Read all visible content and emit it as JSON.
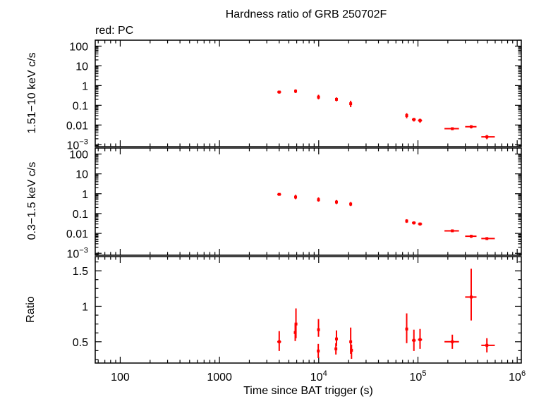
{
  "title": "Hardness ratio of GRB 250702F",
  "subtitle": "red: PC",
  "colors": {
    "series": "#ff0000",
    "axis": "#000000",
    "background": "#ffffff"
  },
  "chart_data": [
    {
      "panel": "hard",
      "type": "scatter",
      "ylabel": "1.51−10 keV c/s",
      "yscale": "log",
      "xscale": "log",
      "xlim": [
        56,
        1100000
      ],
      "ylim": [
        0.0008,
        200
      ],
      "ytick_labels": [
        {
          "v": 100,
          "label": "100"
        },
        {
          "v": 10,
          "label": "10"
        },
        {
          "v": 1,
          "label": "1"
        },
        {
          "v": 0.1,
          "label": "0.1"
        },
        {
          "v": 0.01,
          "label": "0.01"
        },
        {
          "v": 0.001,
          "label": "10",
          "exp": "−3"
        }
      ],
      "points": [
        {
          "x": 4000,
          "y": 0.47,
          "xerr": [
            180,
            180
          ],
          "yerr": [
            0.08,
            0.08
          ]
        },
        {
          "x": 5850,
          "y": 0.52,
          "xerr": [
            120,
            120
          ],
          "yerr": [
            0.1,
            0.12
          ]
        },
        {
          "x": 9950,
          "y": 0.26,
          "xerr": [
            200,
            200
          ],
          "yerr": [
            0.06,
            0.08
          ]
        },
        {
          "x": 15100,
          "y": 0.2,
          "xerr": [
            250,
            250
          ],
          "yerr": [
            0.04,
            0.05
          ]
        },
        {
          "x": 21000,
          "y": 0.12,
          "xerr": [
            350,
            350
          ],
          "yerr": [
            0.04,
            0.05
          ]
        },
        {
          "x": 77000,
          "y": 0.03,
          "xerr": [
            800,
            800
          ],
          "yerr": [
            0.008,
            0.01
          ]
        },
        {
          "x": 91000,
          "y": 0.019,
          "xerr": [
            4000,
            4000
          ],
          "yerr": [
            0.004,
            0.004
          ]
        },
        {
          "x": 105000,
          "y": 0.017,
          "xerr": [
            5000,
            5000
          ],
          "yerr": [
            0.004,
            0.004
          ]
        },
        {
          "x": 222000,
          "y": 0.0065,
          "xerr": [
            37000,
            37000
          ],
          "yerr": [
            0.001,
            0.001
          ]
        },
        {
          "x": 344000,
          "y": 0.0082,
          "xerr": [
            45000,
            45000
          ],
          "yerr": [
            0.0015,
            0.0015
          ]
        },
        {
          "x": 495000,
          "y": 0.0025,
          "xerr": [
            60000,
            100000
          ],
          "yerr": [
            0.0006,
            0.0006
          ]
        }
      ]
    },
    {
      "panel": "soft",
      "type": "scatter",
      "ylabel": "0.3−1.5 keV c/s",
      "yscale": "log",
      "xscale": "log",
      "xlim": [
        56,
        1100000
      ],
      "ylim": [
        0.0008,
        200
      ],
      "ytick_labels": [
        {
          "v": 100,
          "label": "100"
        },
        {
          "v": 10,
          "label": "10"
        },
        {
          "v": 1,
          "label": "1"
        },
        {
          "v": 0.1,
          "label": "0.1"
        },
        {
          "v": 0.01,
          "label": "0.01"
        },
        {
          "v": 0.001,
          "label": "10",
          "exp": "−3"
        }
      ],
      "points": [
        {
          "x": 4000,
          "y": 0.93,
          "xerr": [
            180,
            180
          ],
          "yerr": [
            0.12,
            0.12
          ]
        },
        {
          "x": 5850,
          "y": 0.68,
          "xerr": [
            120,
            120
          ],
          "yerr": [
            0.15,
            0.2
          ]
        },
        {
          "x": 9950,
          "y": 0.5,
          "xerr": [
            200,
            200
          ],
          "yerr": [
            0.1,
            0.15
          ]
        },
        {
          "x": 15100,
          "y": 0.38,
          "xerr": [
            250,
            250
          ],
          "yerr": [
            0.08,
            0.1
          ]
        },
        {
          "x": 21000,
          "y": 0.3,
          "xerr": [
            350,
            350
          ],
          "yerr": [
            0.06,
            0.08
          ]
        },
        {
          "x": 77000,
          "y": 0.042,
          "xerr": [
            800,
            800
          ],
          "yerr": [
            0.008,
            0.01
          ]
        },
        {
          "x": 91000,
          "y": 0.034,
          "xerr": [
            4000,
            4000
          ],
          "yerr": [
            0.006,
            0.006
          ]
        },
        {
          "x": 105000,
          "y": 0.03,
          "xerr": [
            5000,
            5000
          ],
          "yerr": [
            0.005,
            0.005
          ]
        },
        {
          "x": 222000,
          "y": 0.0135,
          "xerr": [
            37000,
            37000
          ],
          "yerr": [
            0.0015,
            0.0015
          ]
        },
        {
          "x": 344000,
          "y": 0.0072,
          "xerr": [
            45000,
            45000
          ],
          "yerr": [
            0.0012,
            0.0012
          ]
        },
        {
          "x": 495000,
          "y": 0.0055,
          "xerr": [
            60000,
            100000
          ],
          "yerr": [
            0.0008,
            0.0008
          ]
        }
      ]
    },
    {
      "panel": "ratio",
      "type": "scatter",
      "ylabel": "Ratio",
      "xlabel": "Time since BAT trigger (s)",
      "yscale": "linear",
      "xscale": "log",
      "xlim": [
        56,
        1100000
      ],
      "ylim": [
        0.2,
        1.7
      ],
      "ytick_labels": [
        {
          "v": 1.5,
          "label": "1.5"
        },
        {
          "v": 1,
          "label": "1"
        },
        {
          "v": 0.5,
          "label": "0.5"
        }
      ],
      "xtick_labels": [
        {
          "v": 100,
          "label": "100"
        },
        {
          "v": 1000,
          "label": "1000"
        },
        {
          "v": 10000,
          "label": "10",
          "exp": "4"
        },
        {
          "v": 100000,
          "label": "10",
          "exp": "5"
        },
        {
          "v": 1000000,
          "label": "10",
          "exp": "6"
        }
      ],
      "points": [
        {
          "x": 4000,
          "y": 0.5,
          "xerr": [
            180,
            180
          ],
          "yerr": [
            0.13,
            0.15
          ]
        },
        {
          "x": 5800,
          "y": 0.63,
          "xerr": [
            80,
            80
          ],
          "yerr": [
            0.12,
            0.12
          ]
        },
        {
          "x": 5900,
          "y": 0.75,
          "xerr": [
            80,
            80
          ],
          "yerr": [
            0.2,
            0.22
          ]
        },
        {
          "x": 9950,
          "y": 0.67,
          "xerr": [
            200,
            200
          ],
          "yerr": [
            0.1,
            0.15
          ]
        },
        {
          "x": 9900,
          "y": 0.37,
          "xerr": [
            120,
            120
          ],
          "yerr": [
            0.1,
            0.1
          ]
        },
        {
          "x": 15100,
          "y": 0.54,
          "xerr": [
            250,
            250
          ],
          "yerr": [
            0.1,
            0.12
          ]
        },
        {
          "x": 14900,
          "y": 0.4,
          "xerr": [
            150,
            150
          ],
          "yerr": [
            0.08,
            0.08
          ]
        },
        {
          "x": 21000,
          "y": 0.5,
          "xerr": [
            350,
            350
          ],
          "yerr": [
            0.17,
            0.2
          ]
        },
        {
          "x": 21400,
          "y": 0.38,
          "xerr": [
            200,
            200
          ],
          "yerr": [
            0.12,
            0.08
          ]
        },
        {
          "x": 77000,
          "y": 0.68,
          "xerr": [
            800,
            800
          ],
          "yerr": [
            0.2,
            0.22
          ]
        },
        {
          "x": 91000,
          "y": 0.52,
          "xerr": [
            4000,
            4000
          ],
          "yerr": [
            0.15,
            0.15
          ]
        },
        {
          "x": 105000,
          "y": 0.53,
          "xerr": [
            5000,
            5000
          ],
          "yerr": [
            0.13,
            0.15
          ]
        },
        {
          "x": 222000,
          "y": 0.5,
          "xerr": [
            37000,
            37000
          ],
          "yerr": [
            0.1,
            0.1
          ]
        },
        {
          "x": 344000,
          "y": 1.13,
          "xerr": [
            45000,
            45000
          ],
          "yerr": [
            0.33,
            0.4
          ]
        },
        {
          "x": 495000,
          "y": 0.45,
          "xerr": [
            60000,
            100000
          ],
          "yerr": [
            0.1,
            0.1
          ]
        }
      ]
    }
  ]
}
